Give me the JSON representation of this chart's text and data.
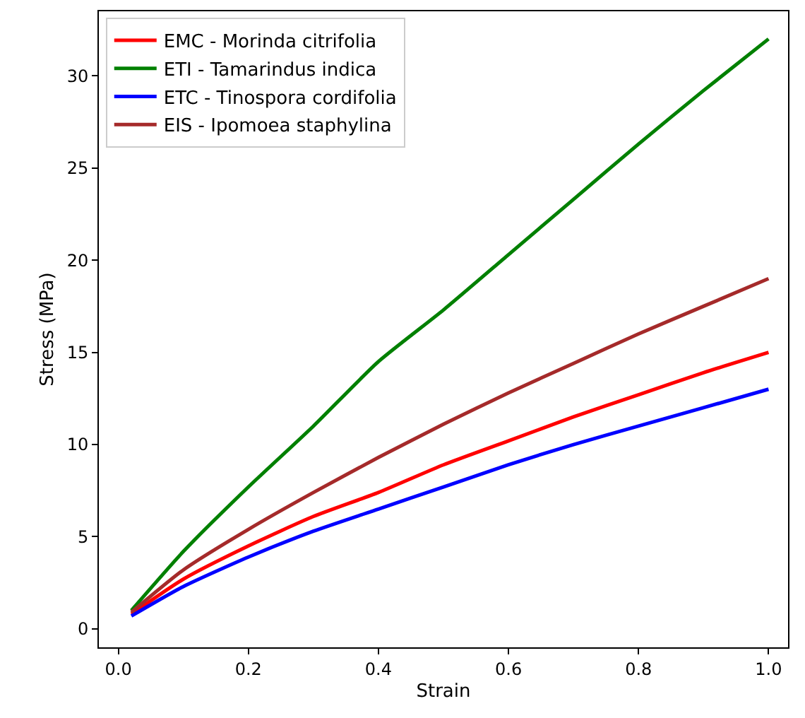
{
  "chart_data": {
    "type": "line",
    "xlabel": "Strain",
    "ylabel": "Stress (MPa)",
    "x": [
      0.02,
      0.1,
      0.2,
      0.3,
      0.4,
      0.5,
      0.6,
      0.7,
      0.8,
      0.9,
      1.0
    ],
    "series": [
      {
        "name": "EMC - Morinda citrifolia",
        "color": "#ff0000",
        "values": [
          0.8,
          2.7,
          4.5,
          6.1,
          7.4,
          8.9,
          10.2,
          11.5,
          12.7,
          13.9,
          15.0
        ]
      },
      {
        "name": "ETI - Tamarindus indica",
        "color": "#008000",
        "values": [
          1.0,
          4.2,
          7.7,
          11.0,
          14.5,
          17.3,
          20.3,
          23.3,
          26.3,
          29.2,
          32.0
        ]
      },
      {
        "name": "ETC - Tinospora cordifolia",
        "color": "#0000ff",
        "values": [
          0.7,
          2.3,
          3.9,
          5.3,
          6.5,
          7.7,
          8.9,
          10.0,
          11.0,
          12.0,
          13.0
        ]
      },
      {
        "name": "EIS - Ipomoea staphylina",
        "color": "#a52a2a",
        "values": [
          0.9,
          3.2,
          5.4,
          7.4,
          9.3,
          11.1,
          12.8,
          14.4,
          16.0,
          17.5,
          19.0
        ]
      }
    ],
    "xlim": [
      -0.03,
      1.03
    ],
    "ylim": [
      -1,
      33.5
    ],
    "xticks": [
      {
        "value": 0,
        "label": "0.0"
      },
      {
        "value": 0.2,
        "label": "0.2"
      },
      {
        "value": 0.4,
        "label": "0.4"
      },
      {
        "value": 0.6,
        "label": "0.6"
      },
      {
        "value": 0.8,
        "label": "0.8"
      },
      {
        "value": 1.0,
        "label": "1.0"
      }
    ],
    "yticks": [
      0,
      5,
      10,
      15,
      20,
      25,
      30
    ],
    "legend": "top left",
    "marker": "none",
    "line_style": "solid"
  }
}
